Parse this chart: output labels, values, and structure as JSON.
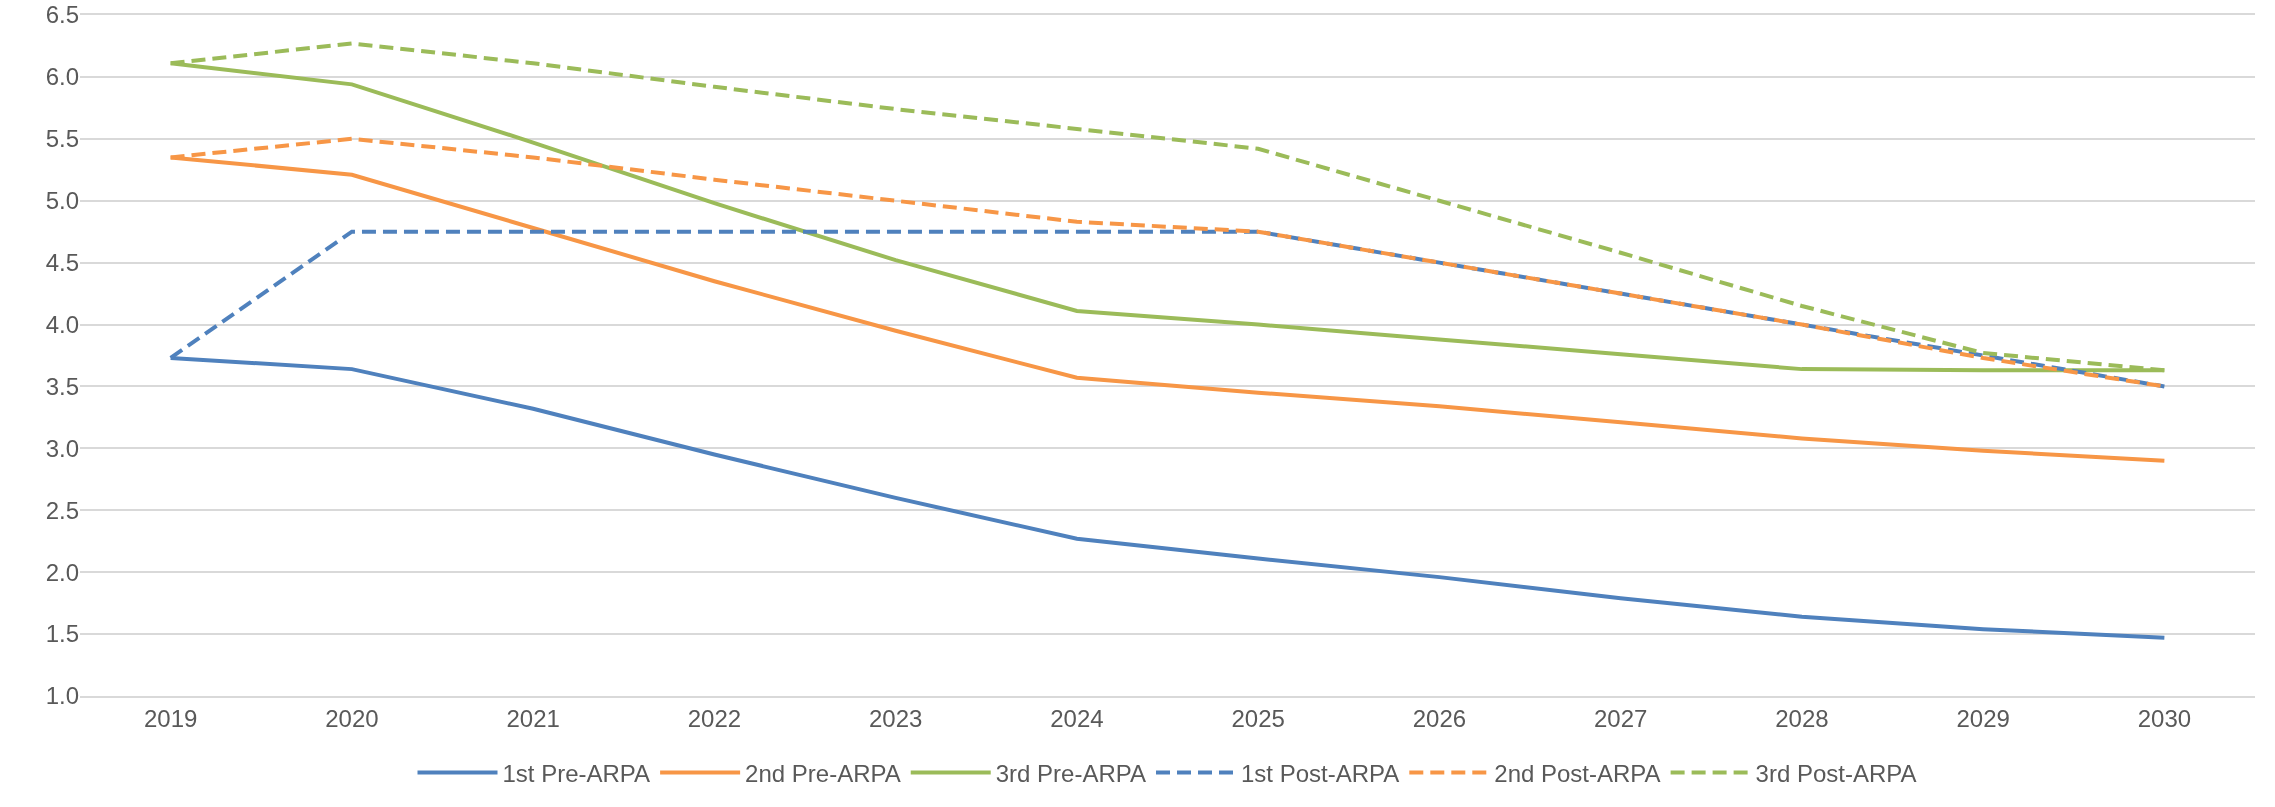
{
  "chart_data": {
    "type": "line",
    "categories": [
      "2019",
      "2020",
      "2021",
      "2022",
      "2023",
      "2024",
      "2025",
      "2026",
      "2027",
      "2028",
      "2029",
      "2030"
    ],
    "series": [
      {
        "name": "1st Pre-ARPA",
        "color": "#4f81bd",
        "line_style": "solid",
        "values": [
          3.73,
          3.64,
          3.32,
          2.95,
          2.6,
          2.27,
          2.11,
          1.96,
          1.79,
          1.64,
          1.54,
          1.47
        ]
      },
      {
        "name": "2nd Pre-ARPA",
        "color": "#f79646",
        "line_style": "solid",
        "values": [
          5.35,
          5.21,
          4.78,
          4.35,
          3.95,
          3.57,
          3.45,
          3.34,
          3.21,
          3.08,
          2.98,
          2.9
        ]
      },
      {
        "name": "3rd Pre-ARPA",
        "color": "#9bbb59",
        "line_style": "solid",
        "values": [
          6.11,
          5.94,
          5.47,
          4.98,
          4.52,
          4.11,
          4.0,
          3.88,
          3.76,
          3.64,
          3.63,
          3.63
        ]
      },
      {
        "name": "1st Post-ARPA",
        "color": "#4f81bd",
        "line_style": "dashed",
        "values": [
          3.73,
          4.75,
          4.75,
          4.75,
          4.75,
          4.75,
          4.75,
          4.5,
          4.25,
          4.0,
          3.75,
          3.5
        ]
      },
      {
        "name": "2nd Post-ARPA",
        "color": "#f79646",
        "line_style": "dashed",
        "values": [
          5.35,
          5.5,
          5.35,
          5.17,
          5.0,
          4.83,
          4.75,
          4.5,
          4.25,
          4.0,
          3.73,
          3.5
        ]
      },
      {
        "name": "3rd Post-ARPA",
        "color": "#9bbb59",
        "line_style": "dashed",
        "values": [
          6.11,
          6.27,
          6.11,
          5.92,
          5.74,
          5.58,
          5.42,
          5.0,
          4.58,
          4.15,
          3.77,
          3.63
        ]
      }
    ],
    "ylim": [
      1.0,
      6.5
    ],
    "yticks": [
      {
        "value": 1,
        "label": "1.0"
      },
      {
        "value": 1.5,
        "label": "1.5"
      },
      {
        "value": 2,
        "label": "2.0"
      },
      {
        "value": 2.5,
        "label": "2.5"
      },
      {
        "value": 3,
        "label": "3.0"
      },
      {
        "value": 3.5,
        "label": "3.5"
      },
      {
        "value": 4,
        "label": "4.0"
      },
      {
        "value": 4.5,
        "label": "4.5"
      },
      {
        "value": 5,
        "label": "5.0"
      },
      {
        "value": 5.5,
        "label": "5.5"
      },
      {
        "value": 6,
        "label": "6.0"
      },
      {
        "value": 6.5,
        "label": "6.5"
      }
    ],
    "grid": "y",
    "legend": "bottom",
    "marker": "none"
  }
}
